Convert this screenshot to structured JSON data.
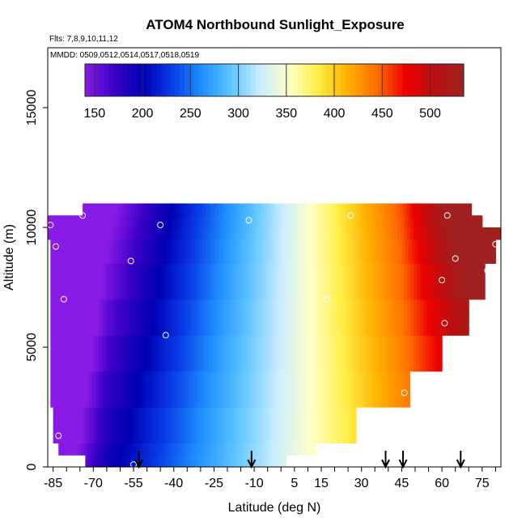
{
  "chart_data": {
    "type": "heatmap",
    "title": "ATOM4 Northbound Sunlight_Exposure",
    "subtitle_flights": "Flts: 7,8,9,10,11,12",
    "subtitle_dates": "MMDD: 0509,0512,0514,0517,0518,0519",
    "xlabel": "Latitude (deg N)",
    "ylabel": "Altitude (m)",
    "xlim": [
      -87,
      82
    ],
    "ylim": [
      0,
      17500
    ],
    "x_tick_labels": [
      "-85",
      "-70",
      "-55",
      "-40",
      "-25",
      "-10",
      "5",
      "15",
      "30",
      "45",
      "60",
      "75"
    ],
    "x_tick_values": [
      -85,
      -70,
      -55,
      -40,
      -25,
      -10,
      5,
      15,
      30,
      45,
      60,
      75
    ],
    "y_tick_labels": [
      "0",
      "5000",
      "10000",
      "15000"
    ],
    "y_tick_values": [
      0,
      5000,
      10000,
      15000
    ],
    "colorbar": {
      "range": [
        140,
        535
      ],
      "tick_labels": [
        "150",
        "200",
        "250",
        "300",
        "350",
        "400",
        "450",
        "500"
      ],
      "tick_values": [
        150,
        200,
        250,
        300,
        350,
        400,
        450,
        500
      ],
      "line_values": [
        150,
        200,
        250,
        300,
        350,
        400,
        450,
        500
      ],
      "colors": [
        "#8a1ae6",
        "#3a00c8",
        "#0000b4",
        "#0a3ce8",
        "#1e90ff",
        "#5ec4ff",
        "#c8ecff",
        "#ffffc8",
        "#ffee44",
        "#ffb000",
        "#ff7000",
        "#ee0000",
        "#b81010",
        "#a02020"
      ]
    },
    "field_extent": {
      "altitude_bands_m": [
        [
          0,
          500,
          -73,
          2
        ],
        [
          500,
          1000,
          -83,
          13
        ],
        [
          1000,
          2500,
          -85,
          28
        ],
        [
          2500,
          4000,
          -86,
          48
        ],
        [
          4000,
          5500,
          -86,
          60
        ],
        [
          5500,
          7000,
          -86,
          70
        ],
        [
          7000,
          8500,
          -86,
          76
        ],
        [
          8500,
          9500,
          -86,
          80
        ],
        [
          9500,
          10000,
          -87,
          82
        ],
        [
          10000,
          10500,
          -87,
          75
        ],
        [
          10500,
          11000,
          -74,
          71
        ]
      ]
    },
    "profile_markers": [
      {
        "lat": -55,
        "alt": 100
      },
      {
        "lat": -83,
        "alt": 1300
      },
      {
        "lat": -81,
        "alt": 7000
      },
      {
        "lat": -84,
        "alt": 9200
      },
      {
        "lat": -86,
        "alt": 10100
      },
      {
        "lat": -74,
        "alt": 10500
      },
      {
        "lat": -56,
        "alt": 8600
      },
      {
        "lat": -45,
        "alt": 10100
      },
      {
        "lat": -43,
        "alt": 5500
      },
      {
        "lat": -12,
        "alt": 10300
      },
      {
        "lat": 5,
        "alt": 300
      },
      {
        "lat": 17,
        "alt": 7000
      },
      {
        "lat": 26,
        "alt": 10500
      },
      {
        "lat": 46,
        "alt": 3100
      },
      {
        "lat": 59,
        "alt": 3100
      },
      {
        "lat": 60,
        "alt": 7800
      },
      {
        "lat": 61,
        "alt": 6000
      },
      {
        "lat": 62,
        "alt": 10500
      },
      {
        "lat": 65,
        "alt": 8700
      },
      {
        "lat": 74,
        "alt": 10800
      },
      {
        "lat": 77,
        "alt": 8200
      },
      {
        "lat": 80,
        "alt": 9300
      }
    ],
    "arrows_lat": [
      -53,
      -11,
      39,
      45.5,
      67
    ]
  }
}
